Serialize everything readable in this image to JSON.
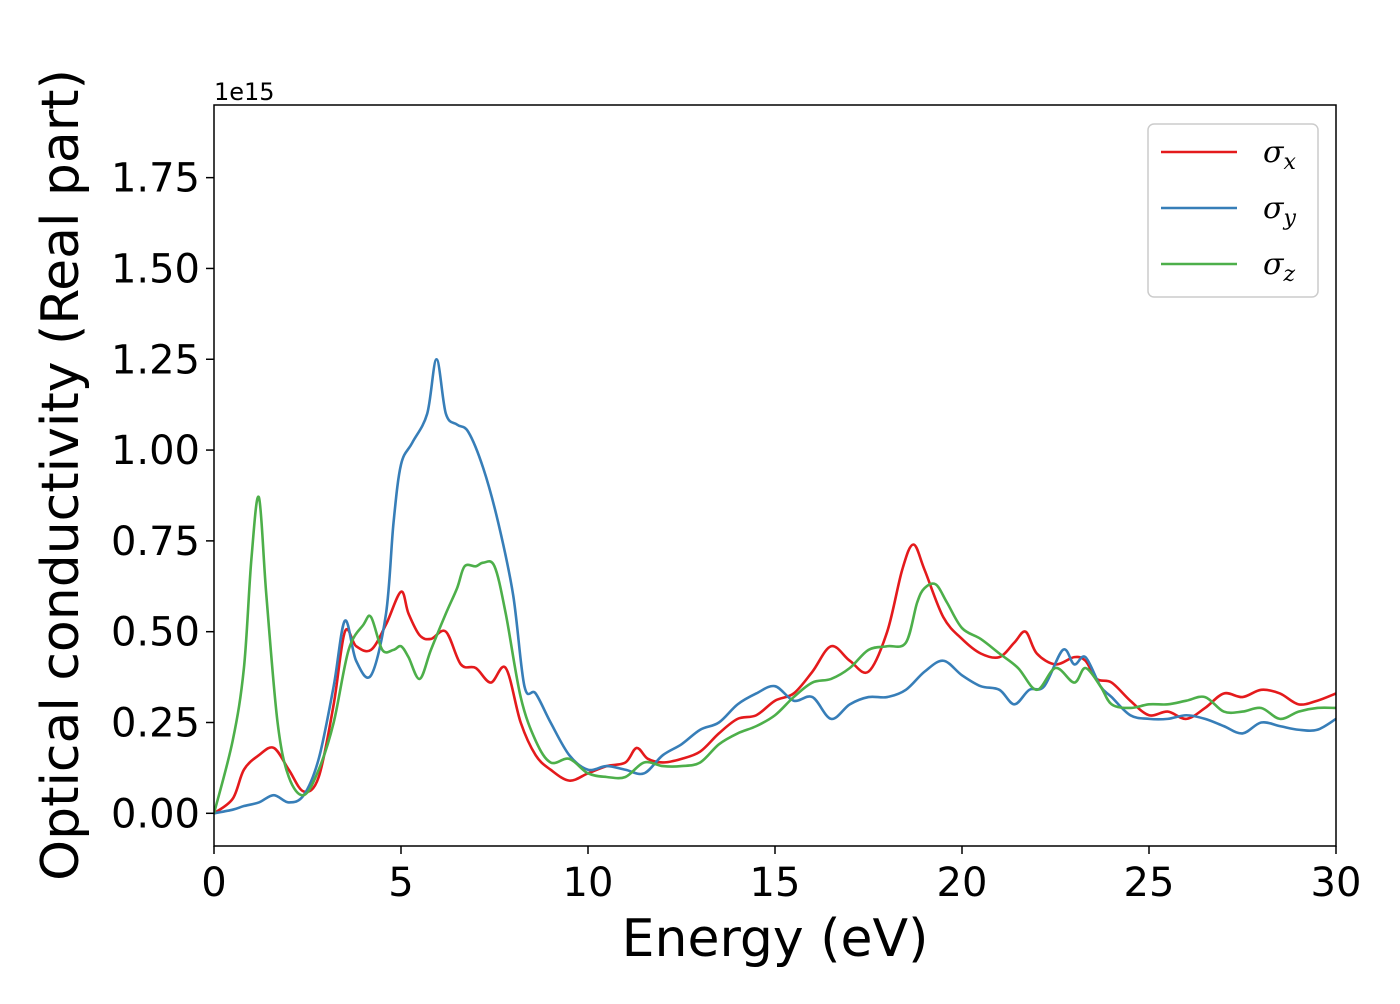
{
  "colors": {
    "sigma_x": "#e41a1c",
    "sigma_y": "#377eb8",
    "sigma_z": "#4daf4a"
  },
  "chart_data": {
    "type": "line",
    "xlabel": "Energy (eV)",
    "ylabel": "Optical conductivity (Real part)",
    "y_offset_label": "1e15",
    "xlim": [
      0,
      30
    ],
    "ylim": [
      -0.09,
      1.95
    ],
    "xticks": [
      0,
      5,
      10,
      15,
      20,
      25,
      30
    ],
    "xtick_labels": [
      "0",
      "5",
      "10",
      "15",
      "20",
      "25",
      "30"
    ],
    "yticks": [
      0.0,
      0.25,
      0.5,
      0.75,
      1.0,
      1.25,
      1.5,
      1.75
    ],
    "ytick_labels": [
      "0.00",
      "0.25",
      "0.50",
      "0.75",
      "1.00",
      "1.25",
      "1.50",
      "1.75"
    ],
    "grid": false,
    "legend_position": "upper right",
    "series": [
      {
        "name": "σ",
        "sub": "x",
        "color": "#e41a1c",
        "x": [
          0,
          0.5,
          0.8,
          1.2,
          1.6,
          2.0,
          2.4,
          2.8,
          3.2,
          3.5,
          3.8,
          4.2,
          4.6,
          5.0,
          5.2,
          5.5,
          5.8,
          6.2,
          6.6,
          7.0,
          7.4,
          7.8,
          8.2,
          8.6,
          9.0,
          9.5,
          10.0,
          10.5,
          11.0,
          11.3,
          11.6,
          12.0,
          12.5,
          13.0,
          13.5,
          14.0,
          14.5,
          15.0,
          15.5,
          16.0,
          16.5,
          17.0,
          17.5,
          18.0,
          18.4,
          18.7,
          19.0,
          19.5,
          20.0,
          20.5,
          21.0,
          21.4,
          21.7,
          22.0,
          22.5,
          23.0,
          23.3,
          23.6,
          24.0,
          24.5,
          25.0,
          25.5,
          26.0,
          26.5,
          27.0,
          27.5,
          28.0,
          28.5,
          29.0,
          29.5,
          30.0
        ],
        "values": [
          0.0,
          0.04,
          0.12,
          0.16,
          0.18,
          0.12,
          0.06,
          0.1,
          0.3,
          0.5,
          0.46,
          0.45,
          0.52,
          0.61,
          0.55,
          0.49,
          0.48,
          0.5,
          0.41,
          0.4,
          0.36,
          0.4,
          0.25,
          0.16,
          0.12,
          0.09,
          0.11,
          0.13,
          0.14,
          0.18,
          0.15,
          0.14,
          0.15,
          0.17,
          0.22,
          0.26,
          0.27,
          0.31,
          0.33,
          0.39,
          0.46,
          0.42,
          0.39,
          0.5,
          0.67,
          0.74,
          0.67,
          0.54,
          0.48,
          0.44,
          0.43,
          0.47,
          0.5,
          0.44,
          0.41,
          0.43,
          0.42,
          0.37,
          0.36,
          0.31,
          0.27,
          0.28,
          0.26,
          0.29,
          0.33,
          0.32,
          0.34,
          0.33,
          0.3,
          0.31,
          0.33
        ]
      },
      {
        "name": "σ",
        "sub": "y",
        "color": "#377eb8",
        "x": [
          0,
          0.5,
          0.8,
          1.2,
          1.6,
          2.0,
          2.4,
          2.8,
          3.2,
          3.5,
          3.8,
          4.2,
          4.6,
          4.8,
          5.0,
          5.3,
          5.7,
          5.95,
          6.2,
          6.5,
          6.8,
          7.2,
          7.6,
          8.0,
          8.3,
          8.6,
          9.0,
          9.5,
          10.0,
          10.5,
          11.0,
          11.5,
          12.0,
          12.5,
          13.0,
          13.5,
          14.0,
          14.5,
          15.0,
          15.5,
          16.0,
          16.5,
          17.0,
          17.5,
          18.0,
          18.5,
          19.0,
          19.5,
          20.0,
          20.5,
          21.0,
          21.4,
          21.8,
          22.2,
          22.7,
          23.0,
          23.3,
          23.7,
          24.0,
          24.5,
          25.0,
          25.5,
          26.0,
          26.5,
          27.0,
          27.5,
          28.0,
          28.5,
          29.0,
          29.5,
          30.0
        ],
        "values": [
          0.0,
          0.01,
          0.02,
          0.03,
          0.05,
          0.03,
          0.05,
          0.15,
          0.35,
          0.53,
          0.42,
          0.38,
          0.55,
          0.8,
          0.96,
          1.02,
          1.1,
          1.25,
          1.1,
          1.07,
          1.05,
          0.95,
          0.8,
          0.6,
          0.35,
          0.33,
          0.25,
          0.16,
          0.12,
          0.13,
          0.12,
          0.11,
          0.16,
          0.19,
          0.23,
          0.25,
          0.3,
          0.33,
          0.35,
          0.31,
          0.32,
          0.26,
          0.3,
          0.32,
          0.32,
          0.34,
          0.39,
          0.42,
          0.38,
          0.35,
          0.34,
          0.3,
          0.34,
          0.35,
          0.45,
          0.41,
          0.43,
          0.35,
          0.32,
          0.27,
          0.26,
          0.26,
          0.27,
          0.26,
          0.24,
          0.22,
          0.25,
          0.24,
          0.23,
          0.23,
          0.26
        ]
      },
      {
        "name": "σ",
        "sub": "z",
        "color": "#4daf4a",
        "x": [
          0,
          0.5,
          0.8,
          1.0,
          1.2,
          1.4,
          1.7,
          2.0,
          2.4,
          2.8,
          3.2,
          3.6,
          4.0,
          4.2,
          4.5,
          4.8,
          5.0,
          5.2,
          5.5,
          5.8,
          6.2,
          6.5,
          6.7,
          7.0,
          7.2,
          7.5,
          7.8,
          8.2,
          8.6,
          9.0,
          9.5,
          10.0,
          10.5,
          11.0,
          11.5,
          12.0,
          12.5,
          13.0,
          13.5,
          14.0,
          14.5,
          15.0,
          15.5,
          16.0,
          16.5,
          17.0,
          17.5,
          18.0,
          18.5,
          18.8,
          19.0,
          19.3,
          19.6,
          20.0,
          20.5,
          21.0,
          21.5,
          22.0,
          22.5,
          23.0,
          23.3,
          23.7,
          24.0,
          24.5,
          25.0,
          25.5,
          26.0,
          26.5,
          27.0,
          27.5,
          28.0,
          28.5,
          29.0,
          29.5,
          30.0
        ],
        "values": [
          0.0,
          0.2,
          0.4,
          0.7,
          0.87,
          0.6,
          0.25,
          0.1,
          0.05,
          0.12,
          0.25,
          0.45,
          0.52,
          0.54,
          0.45,
          0.45,
          0.46,
          0.43,
          0.37,
          0.45,
          0.55,
          0.62,
          0.68,
          0.68,
          0.69,
          0.68,
          0.55,
          0.32,
          0.2,
          0.14,
          0.15,
          0.11,
          0.1,
          0.1,
          0.14,
          0.13,
          0.13,
          0.14,
          0.19,
          0.22,
          0.24,
          0.27,
          0.32,
          0.36,
          0.37,
          0.4,
          0.45,
          0.46,
          0.47,
          0.58,
          0.62,
          0.63,
          0.58,
          0.51,
          0.48,
          0.44,
          0.4,
          0.34,
          0.4,
          0.36,
          0.4,
          0.35,
          0.3,
          0.29,
          0.3,
          0.3,
          0.31,
          0.32,
          0.28,
          0.28,
          0.29,
          0.26,
          0.28,
          0.29,
          0.29
        ]
      }
    ]
  }
}
